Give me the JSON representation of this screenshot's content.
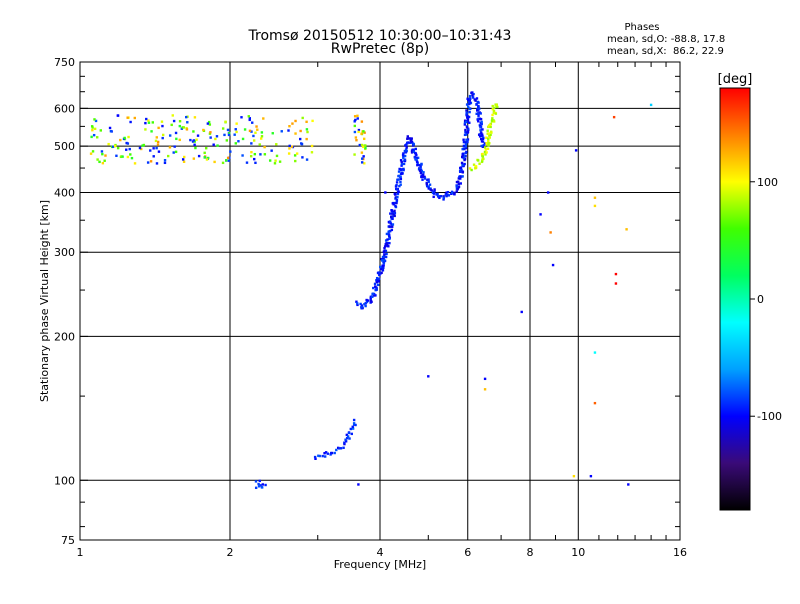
{
  "chart_data": {
    "type": "scatter",
    "title": "Tromsø 20150512 10:30:00–10:31:43",
    "subtitle": "RwPretec (8p)",
    "xlabel": "Frequency [MHz]",
    "ylabel": "Stationary phase Virtual Height [km]",
    "x_scale": "log",
    "y_scale": "log",
    "xlim": [
      1,
      16
    ],
    "ylim": [
      75,
      750
    ],
    "x_ticks": [
      1,
      2,
      4,
      6,
      8,
      10,
      16
    ],
    "x_tick_labels": [
      "1",
      "2",
      "4",
      "6",
      "8",
      "10",
      "16"
    ],
    "y_ticks": [
      75,
      100,
      200,
      300,
      400,
      500,
      600,
      750
    ],
    "y_tick_labels": [
      "75",
      "100",
      "200",
      "300",
      "400",
      "500",
      "600",
      "750"
    ],
    "x_minor_ticks": [
      3,
      5,
      7,
      9,
      11,
      12,
      13,
      14,
      15
    ],
    "y_minor_ticks": [
      80,
      90,
      150,
      250,
      350,
      450,
      550,
      650,
      700
    ],
    "grid": true,
    "phase_box": {
      "title": "Phases",
      "line1": "mean, sd,O: -88.8, 17.8",
      "line2": "mean, sd,X:  86.2, 22.9"
    },
    "colorbar": {
      "label": "[deg]",
      "range": [
        -180,
        180
      ],
      "ticks": [
        100,
        0,
        -100
      ],
      "tick_labels": [
        "100",
        "0",
        "-100"
      ],
      "gradient": [
        "#000000",
        "#3a0a78",
        "#0000ff",
        "#00a0ff",
        "#00ffff",
        "#00ff60",
        "#40ff00",
        "#ffff00",
        "#ff8000",
        "#ff0000"
      ]
    },
    "traces": {
      "o_f1_lower": {
        "phase": -90,
        "color": "#2050e8",
        "points": [
          [
            2.25,
            97
          ],
          [
            2.28,
            99
          ],
          [
            2.3,
            98
          ],
          [
            2.32,
            96
          ],
          [
            2.35,
            99
          ]
        ]
      },
      "o_e_trace": {
        "phase": -90,
        "color": "#1848e0",
        "points": [
          [
            2.95,
            112
          ],
          [
            3.05,
            113
          ],
          [
            3.15,
            114
          ],
          [
            3.25,
            115
          ],
          [
            3.35,
            118
          ],
          [
            3.45,
            122
          ],
          [
            3.52,
            128
          ],
          [
            3.58,
            134
          ]
        ]
      },
      "o_f_trace": {
        "phase": -95,
        "color": "#1a52e8",
        "points": [
          [
            3.6,
            235
          ],
          [
            3.7,
            232
          ],
          [
            3.8,
            236
          ],
          [
            3.9,
            250
          ],
          [
            4.0,
            270
          ],
          [
            4.1,
            300
          ],
          [
            4.2,
            340
          ],
          [
            4.3,
            390
          ],
          [
            4.4,
            440
          ],
          [
            4.5,
            490
          ],
          [
            4.58,
            520
          ],
          [
            4.65,
            505
          ],
          [
            4.75,
            470
          ],
          [
            4.9,
            430
          ],
          [
            5.05,
            405
          ],
          [
            5.2,
            395
          ],
          [
            5.4,
            392
          ],
          [
            5.6,
            398
          ],
          [
            5.75,
            415
          ],
          [
            5.88,
            460
          ],
          [
            5.95,
            520
          ],
          [
            6.0,
            580
          ],
          [
            6.05,
            630
          ],
          [
            6.15,
            640
          ],
          [
            6.25,
            620
          ],
          [
            6.35,
            560
          ],
          [
            6.45,
            500
          ]
        ]
      },
      "x_trace": {
        "phase": 90,
        "color": "#e8d020",
        "points": [
          [
            6.1,
            450
          ],
          [
            6.25,
            455
          ],
          [
            6.4,
            470
          ],
          [
            6.55,
            500
          ],
          [
            6.65,
            540
          ],
          [
            6.75,
            580
          ],
          [
            6.8,
            610
          ],
          [
            6.85,
            600
          ]
        ]
      },
      "spread_f": {
        "phase_range": [
          -100,
          140
        ],
        "h_range": [
          460,
          580
        ],
        "f_ranges": [
          [
            1.05,
            2.95
          ],
          [
            3.55,
            3.75
          ]
        ],
        "count": 260,
        "seed": 7
      },
      "scattered": {
        "points": [
          [
            4.1,
            400,
            -100
          ],
          [
            5.0,
            165,
            -100
          ],
          [
            6.5,
            163,
            -100
          ],
          [
            6.5,
            155,
            120
          ],
          [
            7.7,
            225,
            -100
          ],
          [
            8.4,
            360,
            -100
          ],
          [
            8.7,
            400,
            -100
          ],
          [
            8.8,
            330,
            140
          ],
          [
            8.9,
            282,
            -100
          ],
          [
            9.8,
            102,
            110
          ],
          [
            9.9,
            490,
            -100
          ],
          [
            10.6,
            102,
            -100
          ],
          [
            10.8,
            185,
            -20
          ],
          [
            10.8,
            145,
            150
          ],
          [
            10.8,
            390,
            120
          ],
          [
            10.8,
            375,
            110
          ],
          [
            11.8,
            575,
            160
          ],
          [
            11.9,
            270,
            180
          ],
          [
            11.9,
            258,
            180
          ],
          [
            12.5,
            335,
            120
          ],
          [
            12.6,
            98,
            -100
          ],
          [
            14.0,
            610,
            -40
          ],
          [
            3.62,
            98,
            -100
          ]
        ]
      }
    }
  }
}
